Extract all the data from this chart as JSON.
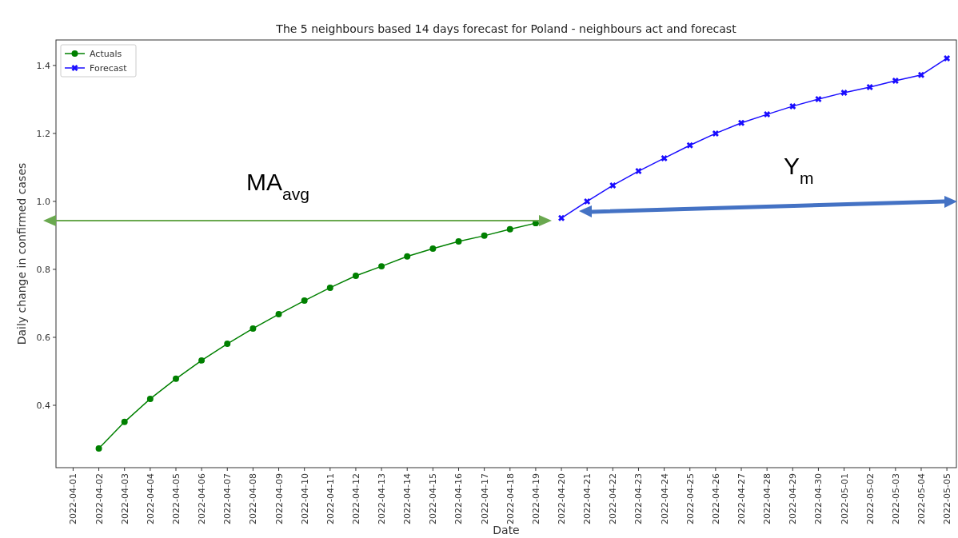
{
  "chart_data": {
    "type": "line",
    "title": "The 5 neighbours based 14 days forecast for Poland - neighbours act and forecast",
    "xlabel": "Date",
    "ylabel": "Daily change in confirmed cases",
    "categories": [
      "2022-04-01",
      "2022-04-02",
      "2022-04-03",
      "2022-04-04",
      "2022-04-05",
      "2022-04-06",
      "2022-04-07",
      "2022-04-08",
      "2022-04-09",
      "2022-04-10",
      "2022-04-11",
      "2022-04-12",
      "2022-04-13",
      "2022-04-14",
      "2022-04-15",
      "2022-04-16",
      "2022-04-17",
      "2022-04-18",
      "2022-04-19",
      "2022-04-20",
      "2022-04-21",
      "2022-04-22",
      "2022-04-23",
      "2022-04-24",
      "2022-04-25",
      "2022-04-26",
      "2022-04-27",
      "2022-04-28",
      "2022-04-29",
      "2022-04-30",
      "2022-05-01",
      "2022-05-02",
      "2022-05-03",
      "2022-05-04",
      "2022-05-05"
    ],
    "series": [
      {
        "name": "Actuals",
        "color": "#008000",
        "marker": "circle",
        "values": [
          null,
          0.273,
          0.351,
          0.419,
          0.478,
          0.532,
          0.581,
          0.626,
          0.668,
          0.708,
          0.746,
          0.781,
          0.809,
          0.838,
          0.861,
          0.882,
          0.899,
          0.918,
          0.936,
          null,
          null,
          null,
          null,
          null,
          null,
          null,
          null,
          null,
          null,
          null,
          null,
          null,
          null,
          null,
          null
        ]
      },
      {
        "name": "Forecast",
        "color": "#1a0dff",
        "marker": "cross",
        "values": [
          null,
          null,
          null,
          null,
          null,
          null,
          null,
          null,
          null,
          null,
          null,
          null,
          null,
          null,
          null,
          null,
          null,
          null,
          null,
          0.951,
          1.0,
          1.047,
          1.089,
          1.127,
          1.165,
          1.2,
          1.231,
          1.256,
          1.28,
          1.301,
          1.32,
          1.336,
          1.355,
          1.372,
          1.421
        ]
      }
    ],
    "ylim": [
      0.2165,
      1.475
    ],
    "yticks": [
      0.4,
      0.6,
      0.8,
      {
        "value": 1,
        "label": "1.0"
      },
      1.2,
      1.4
    ],
    "grid": false,
    "legend": "top left",
    "annotations": [
      "MA$_{avg}$",
      "Y$_{m}$"
    ]
  }
}
